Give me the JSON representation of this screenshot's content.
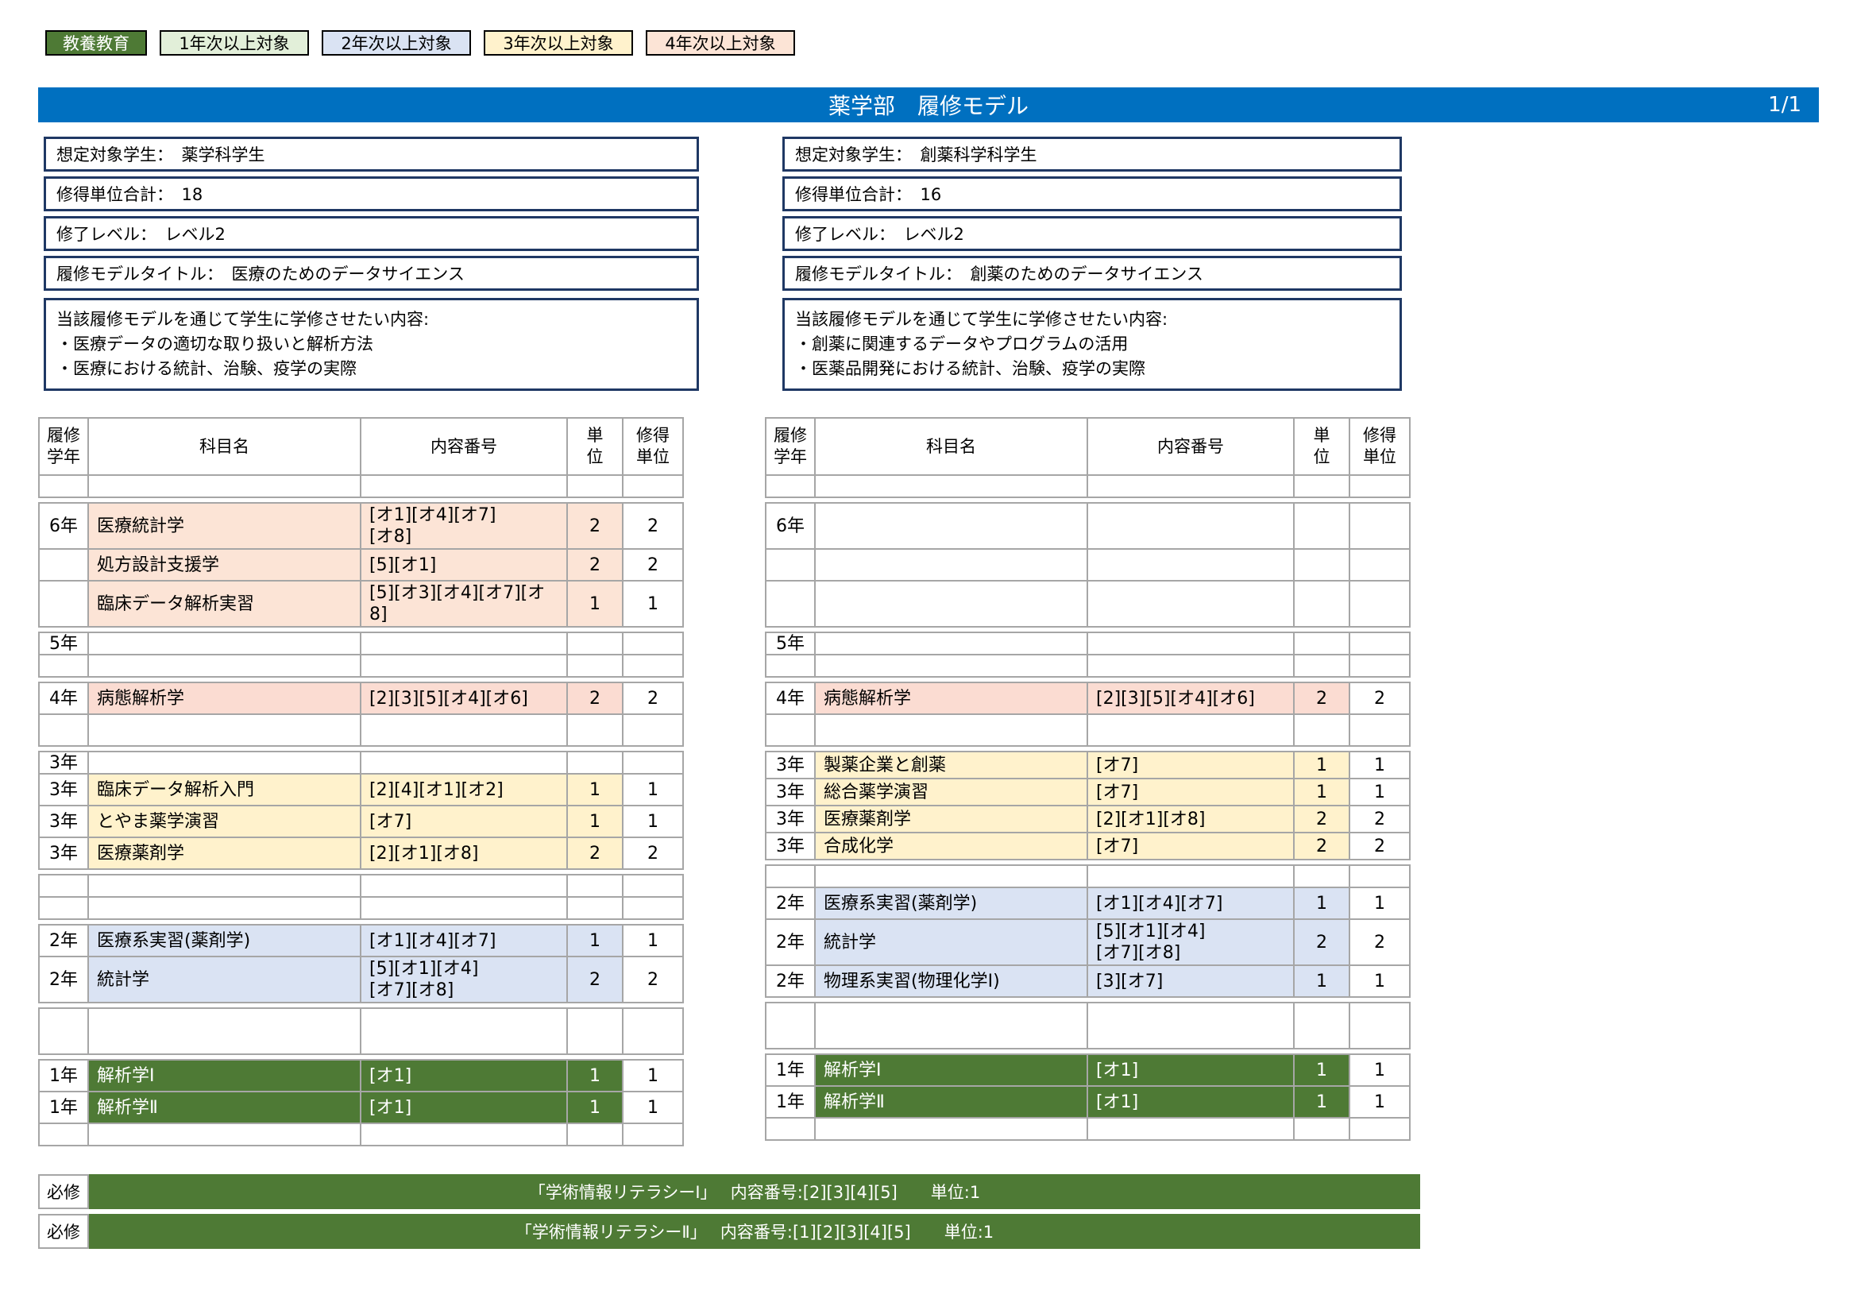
{
  "colors": {
    "title_bar": "#0070c0",
    "green": "#4e7a35",
    "light_green": "#e2efd9",
    "blue": "#dae3f3",
    "yellow": "#fff2cc",
    "peach": "#fce4d6",
    "pink": "#fbdcd2",
    "grid": "#a6a6a6",
    "panel_border": "#1f3864"
  },
  "legend": {
    "items": [
      {
        "label": "教養教育",
        "bg": "#4e7a35",
        "fg": "#ffffff"
      },
      {
        "label": "1年次以上対象",
        "bg": "#e2efd9",
        "fg": "#000000"
      },
      {
        "label": "2年次以上対象",
        "bg": "#dae3f3",
        "fg": "#000000"
      },
      {
        "label": "3年次以上対象",
        "bg": "#fff2cc",
        "fg": "#000000"
      },
      {
        "label": "4年次以上対象",
        "bg": "#fce4d6",
        "fg": "#000000"
      }
    ]
  },
  "header": {
    "title": "薬学部　履修モデル",
    "page": "1/1"
  },
  "panels": [
    {
      "rows": [
        "想定対象学生：　薬学科学生",
        "修得単位合計：　18",
        "修了レベル：　レベル2",
        "履修モデルタイトル：　医療のためのデータサイエンス"
      ],
      "description": {
        "heading": "当該履修モデルを通じて学生に学修させたい内容:",
        "bullets": [
          "・医療データの適切な取り扱いと解析方法",
          "・医療における統計、治験、疫学の実際"
        ]
      }
    },
    {
      "rows": [
        "想定対象学生：　創薬科学科学生",
        "修得単位合計：　16",
        "修了レベル：　レベル2",
        "履修モデルタイトル：　創薬のためのデータサイエンス"
      ],
      "description": {
        "heading": "当該履修モデルを通じて学生に学修させたい内容:",
        "bullets": [
          "・創薬に関連するデータやプログラムの活用",
          "・医薬品開発における統計、治験、疫学の実際"
        ]
      }
    }
  ],
  "tables": [
    {
      "side": "left",
      "columns": [
        "履修\n学年",
        "科目名",
        "内容番号",
        "単\n位",
        "修得\n単位"
      ],
      "rows": [
        {
          "h": "s"
        },
        {
          "gap": true
        },
        {
          "y": "6年",
          "s": "医療統計学",
          "n": "[オ1][オ4][オ7]\n[オ8]",
          "u": "2",
          "e": "2",
          "c": "peach",
          "h": "t"
        },
        {
          "s": "処方設計支援学",
          "n": "[5][オ1]",
          "u": "2",
          "e": "2",
          "c": "peach"
        },
        {
          "s": "臨床データ解析実習",
          "n": "[5][オ3][オ4][オ7][オ8]",
          "u": "1",
          "e": "1",
          "c": "peach",
          "h": "t"
        },
        {
          "gap": true
        },
        {
          "y": "5年",
          "h": "s"
        },
        {
          "h": "s"
        },
        {
          "gap": true
        },
        {
          "y": "4年",
          "s": "病態解析学",
          "n": "[2][3][5][オ4][オ6]",
          "u": "2",
          "e": "2",
          "c": "pink"
        },
        {},
        {
          "gap": true
        },
        {
          "y": "3年",
          "h": "s"
        },
        {
          "y": "3年",
          "s": "臨床データ解析入門",
          "n": "[2][4][オ1][オ2]",
          "u": "1",
          "e": "1",
          "c": "yellow"
        },
        {
          "y": "3年",
          "s": "とやま薬学演習",
          "n": "[オ7]",
          "u": "1",
          "e": "1",
          "c": "yellow"
        },
        {
          "y": "3年",
          "s": "医療薬剤学",
          "n": "[2][オ1][オ8]",
          "u": "2",
          "e": "2",
          "c": "yellow"
        },
        {
          "gap": true
        },
        {
          "h": "s"
        },
        {
          "h": "s"
        },
        {
          "gap": true
        },
        {
          "y": "2年",
          "s": "医療系実習(薬剤学)",
          "n": "[オ1][オ4][オ7]",
          "u": "1",
          "e": "1",
          "c": "blue"
        },
        {
          "y": "2年",
          "s": "統計学",
          "n": "[5][オ1][オ4]\n[オ7][オ8]",
          "u": "2",
          "e": "2",
          "c": "blue",
          "h": "t"
        },
        {
          "gap": true
        },
        {
          "h": "t"
        },
        {
          "gap": true
        },
        {
          "y": "1年",
          "s": "解析学Ⅰ",
          "n": "[オ1]",
          "u": "1",
          "e": "1",
          "c": "green"
        },
        {
          "y": "1年",
          "s": "解析学Ⅱ",
          "n": "[オ1]",
          "u": "1",
          "e": "1",
          "c": "green"
        },
        {
          "h": "s"
        }
      ]
    },
    {
      "side": "right",
      "columns": [
        "履修\n学年",
        "科目名",
        "内容番号",
        "単\n位",
        "修得\n単位"
      ],
      "rows": [
        {
          "h": "s"
        },
        {
          "gap": true
        },
        {
          "y": "6年",
          "h": "t"
        },
        {},
        {
          "h": "t"
        },
        {
          "gap": true
        },
        {
          "y": "5年",
          "h": "s"
        },
        {
          "h": "s"
        },
        {
          "gap": true
        },
        {
          "y": "4年",
          "s": "病態解析学",
          "n": "[2][3][5][オ4][オ6]",
          "u": "2",
          "e": "2",
          "c": "pink"
        },
        {},
        {
          "gap": true
        },
        {
          "y": "3年",
          "s": "製薬企業と創薬",
          "n": "[オ7]",
          "u": "1",
          "e": "1",
          "c": "yellow",
          "h": "q"
        },
        {
          "y": "3年",
          "s": "総合薬学演習",
          "n": "[オ7]",
          "u": "1",
          "e": "1",
          "c": "yellow",
          "h": "q"
        },
        {
          "y": "3年",
          "s": "医療薬剤学",
          "n": "[2][オ1][オ8]",
          "u": "2",
          "e": "2",
          "c": "yellow",
          "h": "q"
        },
        {
          "y": "3年",
          "s": "合成化学",
          "n": "[オ7]",
          "u": "2",
          "e": "2",
          "c": "yellow",
          "h": "q"
        },
        {
          "gap": true
        },
        {
          "h": "s"
        },
        {
          "y": "2年",
          "s": "医療系実習(薬剤学)",
          "n": "[オ1][オ4][オ7]",
          "u": "1",
          "e": "1",
          "c": "blue"
        },
        {
          "y": "2年",
          "s": "統計学",
          "n": "[5][オ1][オ4]\n[オ7][オ8]",
          "u": "2",
          "e": "2",
          "c": "blue",
          "h": "t"
        },
        {
          "y": "2年",
          "s": "物理系実習(物理化学Ⅰ)",
          "n": "[3][オ7]",
          "u": "1",
          "e": "1",
          "c": "blue"
        },
        {
          "gap": true
        },
        {
          "h": "t"
        },
        {
          "gap": true
        },
        {
          "y": "1年",
          "s": "解析学Ⅰ",
          "n": "[オ1]",
          "u": "1",
          "e": "1",
          "c": "green"
        },
        {
          "y": "1年",
          "s": "解析学Ⅱ",
          "n": "[オ1]",
          "u": "1",
          "e": "1",
          "c": "green"
        },
        {
          "h": "s"
        }
      ]
    }
  ],
  "required": [
    {
      "label": "必修",
      "text": "「学術情報リテラシーⅠ」　 内容番号:[2][3][4][5]　　単位:1"
    },
    {
      "label": "必修",
      "text": "「学術情報リテラシーⅡ」　 内容番号:[1][2][3][4][5]　　単位:1"
    }
  ]
}
